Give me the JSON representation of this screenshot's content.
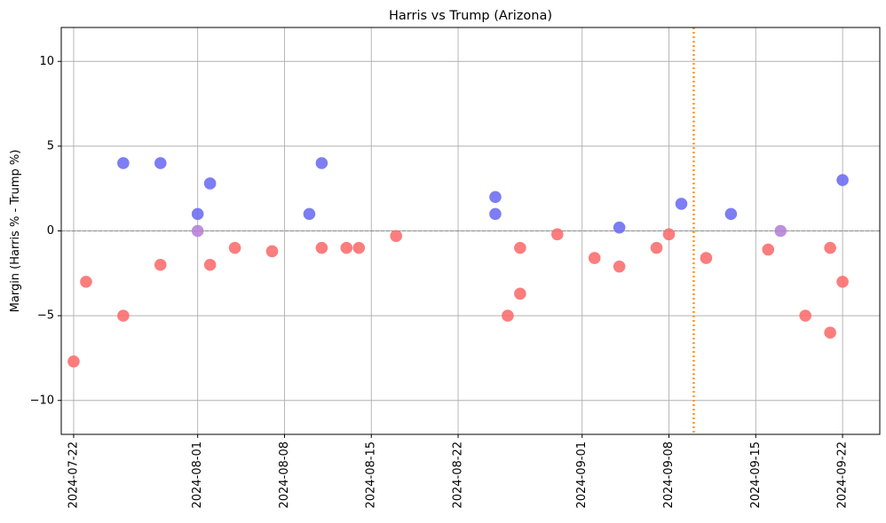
{
  "chart_data": {
    "type": "scatter",
    "title": "Harris vs Trump (Arizona)",
    "xlabel": "",
    "ylabel": "Margin (Harris % - Trump %)",
    "xlim": [
      "2024-07-21",
      "2024-09-25"
    ],
    "ylim": [
      -12,
      12
    ],
    "x_ticks": [
      "2024-07-22",
      "2024-08-01",
      "2024-08-08",
      "2024-08-15",
      "2024-08-22",
      "2024-09-01",
      "2024-09-08",
      "2024-09-15",
      "2024-09-22"
    ],
    "y_ticks": [
      -10,
      -5,
      0,
      5,
      10
    ],
    "grid": true,
    "reference_line": {
      "y": 0,
      "style": "dashed",
      "color": "#888888"
    },
    "vertical_line": {
      "x": "2024-09-10",
      "style": "dotted",
      "color": "#ff8c00"
    },
    "colors": {
      "harris_lead": "#6b6bf2",
      "trump_lead": "#fa6b6b",
      "tie": "#b57fd6"
    },
    "points": [
      {
        "x": "2024-07-22",
        "y": -7.7
      },
      {
        "x": "2024-07-23",
        "y": -3.0
      },
      {
        "x": "2024-07-26",
        "y": 4.0
      },
      {
        "x": "2024-07-26",
        "y": -5.0
      },
      {
        "x": "2024-07-29",
        "y": 4.0
      },
      {
        "x": "2024-07-29",
        "y": -2.0
      },
      {
        "x": "2024-08-01",
        "y": 1.0
      },
      {
        "x": "2024-08-01",
        "y": 0.0
      },
      {
        "x": "2024-08-02",
        "y": 2.8
      },
      {
        "x": "2024-08-02",
        "y": -2.0
      },
      {
        "x": "2024-08-04",
        "y": -1.0
      },
      {
        "x": "2024-08-07",
        "y": -1.2
      },
      {
        "x": "2024-08-10",
        "y": 1.0
      },
      {
        "x": "2024-08-11",
        "y": -1.0
      },
      {
        "x": "2024-08-11",
        "y": 4.0
      },
      {
        "x": "2024-08-13",
        "y": -1.0
      },
      {
        "x": "2024-08-14",
        "y": -1.0
      },
      {
        "x": "2024-08-17",
        "y": -0.3
      },
      {
        "x": "2024-08-25",
        "y": 1.0
      },
      {
        "x": "2024-08-25",
        "y": 2.0
      },
      {
        "x": "2024-08-26",
        "y": -5.0
      },
      {
        "x": "2024-08-27",
        "y": -3.7
      },
      {
        "x": "2024-08-27",
        "y": -1.0
      },
      {
        "x": "2024-08-30",
        "y": -0.2
      },
      {
        "x": "2024-09-02",
        "y": -1.6
      },
      {
        "x": "2024-09-04",
        "y": -2.1
      },
      {
        "x": "2024-09-04",
        "y": 0.2
      },
      {
        "x": "2024-09-07",
        "y": -1.0
      },
      {
        "x": "2024-09-08",
        "y": -0.2
      },
      {
        "x": "2024-09-09",
        "y": 1.6
      },
      {
        "x": "2024-09-11",
        "y": -1.6
      },
      {
        "x": "2024-09-13",
        "y": 1.0
      },
      {
        "x": "2024-09-16",
        "y": -1.1
      },
      {
        "x": "2024-09-17",
        "y": 0.0
      },
      {
        "x": "2024-09-19",
        "y": -5.0
      },
      {
        "x": "2024-09-21",
        "y": -1.0
      },
      {
        "x": "2024-09-21",
        "y": -6.0
      },
      {
        "x": "2024-09-22",
        "y": 3.0
      },
      {
        "x": "2024-09-22",
        "y": -3.0
      }
    ]
  }
}
